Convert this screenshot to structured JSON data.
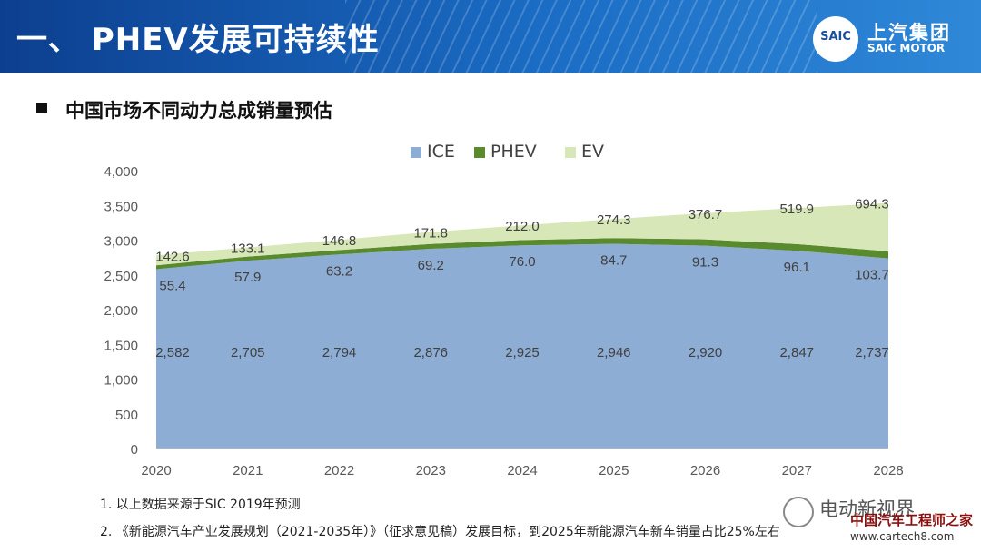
{
  "header": {
    "title": "一、 PHEV发展可持续性"
  },
  "logo": {
    "badge": "SAIC",
    "cn": "上汽集团",
    "en": "SAIC MOTOR"
  },
  "subtitle": "中国市场不同动力总成销量预估",
  "colors": {
    "ICE": "#8eadd4",
    "PHEV": "#5a8a2e",
    "EV": "#d7e7b8",
    "header": "#1a5db5"
  },
  "chart_data": {
    "type": "area",
    "stacked": true,
    "x": [
      "2020",
      "2021",
      "2022",
      "2023",
      "2024",
      "2025",
      "2026",
      "2027",
      "2028"
    ],
    "series": [
      {
        "name": "ICE",
        "values": [
          2582,
          2705,
          2794,
          2876,
          2925,
          2946,
          2920,
          2847,
          2737
        ],
        "labels": [
          "2,582",
          "2,705",
          "2,794",
          "2,876",
          "2,925",
          "2,946",
          "2,920",
          "2,847",
          "2,737"
        ]
      },
      {
        "name": "PHEV",
        "values": [
          55.4,
          57.9,
          63.2,
          69.2,
          76.0,
          84.7,
          91.3,
          96.1,
          103.7
        ],
        "labels": [
          "55.4",
          "57.9",
          "63.2",
          "69.2",
          "76.0",
          "84.7",
          "91.3",
          "96.1",
          "103.7"
        ]
      },
      {
        "name": "EV",
        "values": [
          142.6,
          133.1,
          146.8,
          171.8,
          212.0,
          274.3,
          376.7,
          519.9,
          694.3
        ],
        "labels": [
          "142.6",
          "133.1",
          "146.8",
          "171.8",
          "212.0",
          "274.3",
          "376.7",
          "519.9",
          "694.3"
        ]
      }
    ],
    "ylim": [
      0,
      4000
    ],
    "yticks": [
      "0",
      "500",
      "1,000",
      "1,500",
      "2,000",
      "2,500",
      "3,000",
      "3,500",
      "4,000"
    ],
    "legend_position": "top",
    "grid": false
  },
  "notes": [
    "1.  以上数据来源于SIC 2019年预测",
    "2.  《新能源汽车产业发展规划（2021-2035年）》（征求意见稿）发展目标，到2025年新能源汽车新车销量占比25%左右"
  ],
  "watermark": {
    "line1": "电动新视界",
    "line2": "中国汽车工程师之家",
    "line3": "www.cartech8.com"
  }
}
